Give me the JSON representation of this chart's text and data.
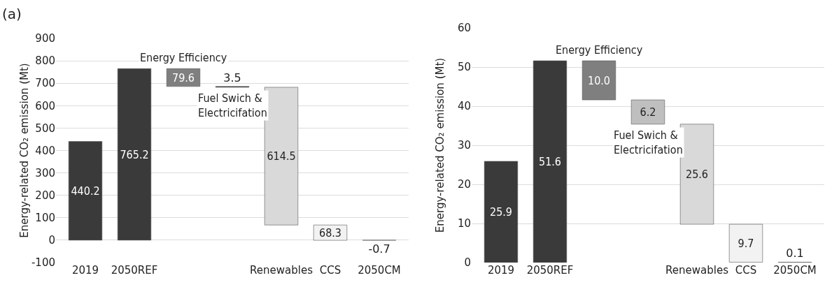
{
  "chart_data": [
    {
      "type": "bar",
      "title": "(a)",
      "ylabel": "Energy-related CO₂ emission (Mt)",
      "categories": [
        "2019",
        "2050REF",
        null,
        null,
        "Renewables",
        "CCS",
        "2050CM"
      ],
      "values": [
        440.2,
        765.2,
        79.6,
        3.5,
        614.5,
        68.3,
        -0.7
      ],
      "base": [
        0,
        0,
        685.6,
        682.1,
        67.6,
        -0.7,
        0
      ],
      "colors": [
        "#3a3a3a",
        "#3a3a3a",
        "#7f7f7f",
        "#404040",
        "#d9d9d9",
        "#f2f2f2",
        "#3a3a3a"
      ],
      "value_labels": [
        "440.2",
        "765.2",
        "79.6",
        "3.5",
        "614.5",
        "68.3",
        "-0.7"
      ],
      "annotations": [
        "Energy Efficiency",
        "Fuel Swich &\nElectricifation"
      ],
      "ylim": [
        -100,
        900
      ],
      "yticks": [
        -100,
        0,
        100,
        200,
        300,
        400,
        500,
        600,
        700,
        800,
        900
      ],
      "grid": "y"
    },
    {
      "type": "bar",
      "ylabel": "Energy-related CO₂ emission (Mt)",
      "categories": [
        "2019",
        "2050REF",
        null,
        null,
        "Renewables",
        "CCS",
        "2050CM"
      ],
      "values": [
        25.9,
        51.6,
        10.0,
        6.2,
        25.6,
        9.7,
        0.1
      ],
      "base": [
        0,
        0,
        41.6,
        35.4,
        9.8,
        0.1,
        0
      ],
      "colors": [
        "#3a3a3a",
        "#3a3a3a",
        "#7f7f7f",
        "#bfbfbf",
        "#d9d9d9",
        "#f2f2f2",
        "#3a3a3a"
      ],
      "value_labels": [
        "25.9",
        "51.6",
        "10.0",
        "6.2",
        "25.6",
        "9.7",
        "0.1"
      ],
      "annotations": [
        "Energy Efficiency",
        "Fuel Swich &\nElectricifation"
      ],
      "ylim": [
        0,
        60
      ],
      "yticks": [
        0,
        10,
        20,
        30,
        40,
        50,
        60
      ],
      "grid": "y"
    }
  ]
}
